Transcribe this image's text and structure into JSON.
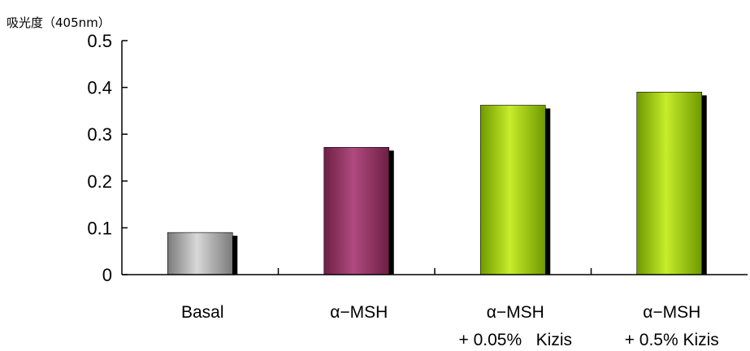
{
  "chart_data": {
    "type": "bar",
    "title": "",
    "ylabel": "吸光度（405nm）",
    "xlabel": "",
    "ylim": [
      0,
      0.5
    ],
    "yticks": [
      "0",
      "0.1",
      "0.2",
      "0.3",
      "0.4",
      "0.5"
    ],
    "categories": [
      {
        "line1": "Basal",
        "line2": ""
      },
      {
        "line1": "α−MSH",
        "line2": ""
      },
      {
        "line1": "α−MSH",
        "line2": "+ 0.05%   Kizis"
      },
      {
        "line1": "α−MSH",
        "line2": "+ 0.5% Kizis"
      }
    ],
    "values": [
      0.09,
      0.272,
      0.362,
      0.39
    ],
    "bar_colors": [
      {
        "edge": "#7a7a7a",
        "mid": "#d8d8d8"
      },
      {
        "edge": "#6e1f45",
        "mid": "#b04a7e"
      },
      {
        "edge": "#6f9a00",
        "mid": "#c6ec2a"
      },
      {
        "edge": "#6f9a00",
        "mid": "#c6ec2a"
      }
    ],
    "shadow_color": "#000000",
    "grid": false,
    "legend": "none"
  }
}
